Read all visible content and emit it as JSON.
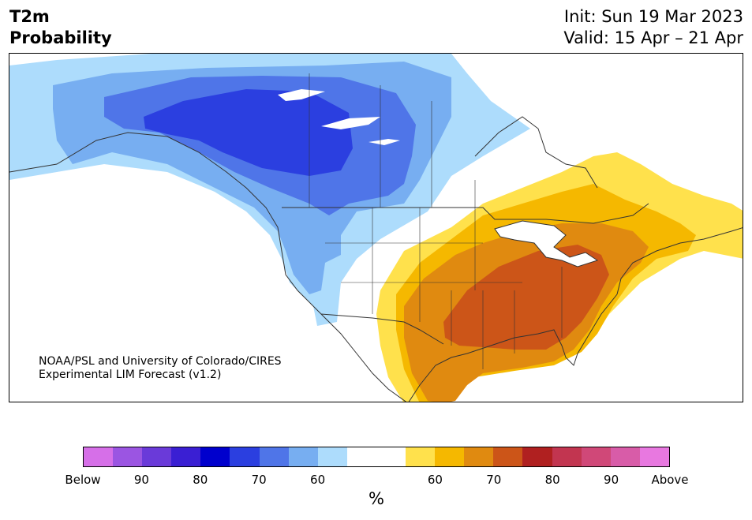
{
  "header": {
    "variable": "T2m",
    "product": "Probability",
    "init": "Init: Sun 19 Mar 2023",
    "valid": "Valid: 15 Apr – 21 Apr"
  },
  "credit": {
    "line1": "NOAA/PSL and University of Colorado/CIRES",
    "line2": "Experimental LIM Forecast (v1.2)"
  },
  "colorbar": {
    "colors": [
      "#d66fe8",
      "#9b55e2",
      "#6a3ad9",
      "#3a1fd3",
      "#0000cd",
      "#2b3fe0",
      "#4f75e8",
      "#77aef1",
      "#addcfc",
      "#ffffff",
      "#ffffff",
      "#ffe14c",
      "#f5b800",
      "#e08a10",
      "#cc5518",
      "#b02020",
      "#c23550",
      "#d04878",
      "#d85ca8",
      "#e878e0"
    ],
    "tick_labels": [
      "Below",
      "90",
      "80",
      "70",
      "60",
      "60",
      "70",
      "80",
      "90",
      "Above"
    ],
    "unit": "%"
  }
}
